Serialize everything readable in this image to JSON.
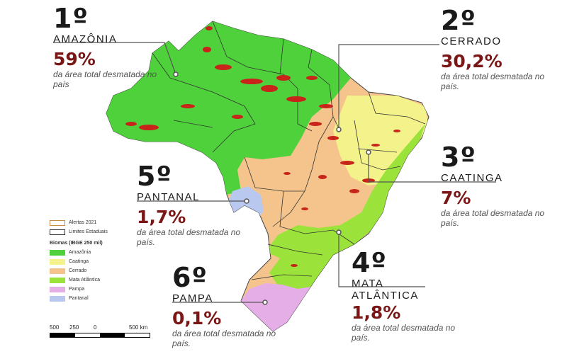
{
  "callouts": [
    {
      "rank": "1º",
      "biome": "AMAZÔNIA",
      "pct": "59%",
      "desc": "da área total desmatada no país"
    },
    {
      "rank": "2º",
      "biome": "CERRADO",
      "pct": "30,2%",
      "desc": "da área total desmatada no país."
    },
    {
      "rank": "3º",
      "biome": "CAATINGA",
      "pct": "7%",
      "desc": "da área total desmatada no país."
    },
    {
      "rank": "4º",
      "biome": "MATA ATLÂNTICA",
      "pct": "1,8%",
      "desc": "da área total desmatada no país."
    },
    {
      "rank": "5º",
      "biome": "PANTANAL",
      "pct": "1,7%",
      "desc": "da área total desmatada no país."
    },
    {
      "rank": "6º",
      "biome": "PAMPA",
      "pct": "0,1%",
      "desc": "da área total desmatada no país."
    }
  ],
  "legend": {
    "alertas": "Alertas 2021",
    "limites": "Limites Estaduais",
    "title": "Biomas (IBGE 250 mil)",
    "items": [
      {
        "label": "Amazônia",
        "color": "#4fd13b"
      },
      {
        "label": "Caatinga",
        "color": "#f4f28a"
      },
      {
        "label": "Cerrado",
        "color": "#f4c48c"
      },
      {
        "label": "Mata Atlântica",
        "color": "#9be33a"
      },
      {
        "label": "Pampa",
        "color": "#e6aee6"
      },
      {
        "label": "Pantanal",
        "color": "#b8c8ee"
      }
    ]
  },
  "scale": {
    "labels": [
      "500",
      "250",
      "0",
      "500 km"
    ]
  },
  "colors": {
    "alert": "#c8241a",
    "boundary": "#333333",
    "percent": "#7a1616"
  }
}
